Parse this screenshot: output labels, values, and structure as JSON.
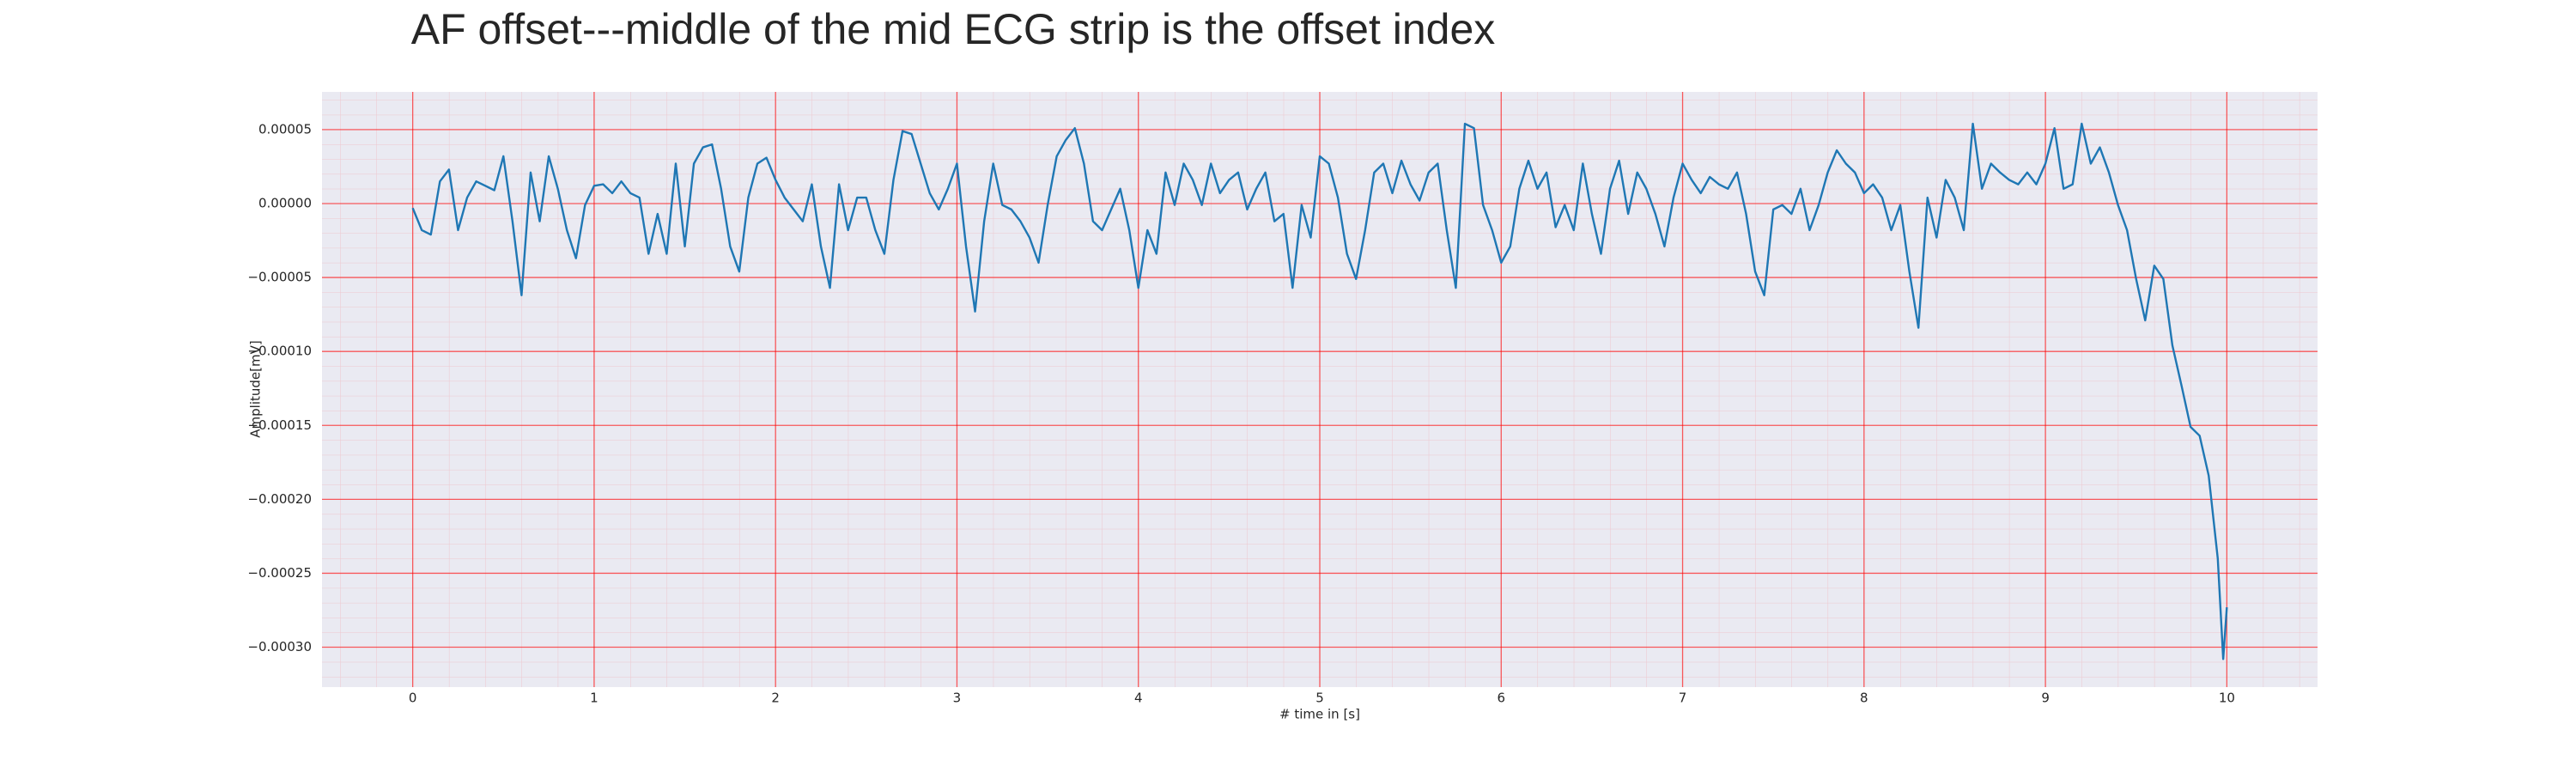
{
  "chart_data": {
    "type": "line",
    "title": "AF offset---middle of the mid ECG strip is the offset index",
    "x_label": "# time in [s]",
    "y_label": "Amplitude[mV]",
    "color": "#1f77b4",
    "grid": true,
    "xlim": [
      -0.5,
      10.5
    ],
    "ylim": [
      -0.000327,
      7.55e-05
    ],
    "xticks": [
      0,
      1,
      2,
      3,
      4,
      5,
      6,
      7,
      8,
      9,
      10
    ],
    "yticks": [
      {
        "value": 5e-05,
        "label": "0.00005"
      },
      {
        "value": 0,
        "label": "0.00000"
      },
      {
        "value": -5e-05,
        "label": "−0.00005"
      },
      {
        "value": -0.0001,
        "label": "−0.00010"
      },
      {
        "value": -0.00015,
        "label": "−0.00015"
      },
      {
        "value": -0.0002,
        "label": "−0.00020"
      },
      {
        "value": -0.00025,
        "label": "−0.00025"
      },
      {
        "value": -0.0003,
        "label": "−0.00030"
      }
    ],
    "x": [
      0,
      0.05,
      0.1,
      0.15,
      0.2,
      0.25,
      0.3,
      0.35,
      0.4,
      0.45,
      0.5,
      0.55,
      0.6,
      0.65,
      0.7,
      0.75,
      0.8,
      0.85,
      0.9,
      0.95,
      1,
      1.05,
      1.1,
      1.15,
      1.2,
      1.25,
      1.3,
      1.35,
      1.4,
      1.45,
      1.5,
      1.55,
      1.6,
      1.65,
      1.7,
      1.75,
      1.8,
      1.85,
      1.9,
      1.95,
      2,
      2.05,
      2.1,
      2.15,
      2.2,
      2.25,
      2.3,
      2.35,
      2.4,
      2.45,
      2.5,
      2.55,
      2.6,
      2.65,
      2.7,
      2.75,
      2.8,
      2.85,
      2.9,
      2.95,
      3,
      3.05,
      3.1,
      3.15,
      3.2,
      3.25,
      3.3,
      3.35,
      3.4,
      3.45,
      3.5,
      3.55,
      3.6,
      3.65,
      3.7,
      3.75,
      3.8,
      3.85,
      3.9,
      3.95,
      4,
      4.05,
      4.1,
      4.15,
      4.2,
      4.25,
      4.3,
      4.35,
      4.4,
      4.45,
      4.5,
      4.55,
      4.6,
      4.65,
      4.7,
      4.75,
      4.8,
      4.85,
      4.9,
      4.95,
      5,
      5.05,
      5.1,
      5.15,
      5.2,
      5.25,
      5.3,
      5.35,
      5.4,
      5.45,
      5.5,
      5.55,
      5.6,
      5.65,
      5.7,
      5.75,
      5.8,
      5.85,
      5.9,
      5.95,
      6,
      6.05,
      6.1,
      6.15,
      6.2,
      6.25,
      6.3,
      6.35,
      6.4,
      6.45,
      6.5,
      6.55,
      6.6,
      6.65,
      6.7,
      6.75,
      6.8,
      6.85,
      6.9,
      6.95,
      7,
      7.05,
      7.1,
      7.15,
      7.2,
      7.25,
      7.3,
      7.35,
      7.4,
      7.45,
      7.5,
      7.55,
      7.6,
      7.65,
      7.7,
      7.75,
      7.8,
      7.85,
      7.9,
      7.95,
      8,
      8.05,
      8.1,
      8.15,
      8.2,
      8.25,
      8.3,
      8.35,
      8.4,
      8.45,
      8.5,
      8.55,
      8.6,
      8.65,
      8.7,
      8.75,
      8.8,
      8.85,
      8.9,
      8.95,
      9,
      9.05,
      9.1,
      9.15,
      9.2,
      9.25,
      9.3,
      9.35,
      9.4,
      9.45,
      9.5,
      9.55,
      9.6,
      9.65,
      9.7,
      9.75,
      9.8,
      9.85,
      9.9,
      9.95,
      9.98,
      10
    ],
    "values": [
      -3e-06,
      -1.8e-05,
      -2.1e-05,
      1.5e-05,
      2.3e-05,
      -1.8e-05,
      4e-06,
      1.5e-05,
      1.2e-05,
      9e-06,
      3.2e-05,
      -1.2e-05,
      -6.2e-05,
      2.1e-05,
      -1.2e-05,
      3.2e-05,
      1e-05,
      -1.8e-05,
      -3.7e-05,
      -1e-06,
      1.2e-05,
      1.3e-05,
      7e-06,
      1.5e-05,
      7e-06,
      4e-06,
      -3.4e-05,
      -7e-06,
      -3.4e-05,
      2.7e-05,
      -2.9e-05,
      2.7e-05,
      3.8e-05,
      4e-05,
      1e-05,
      -2.9e-05,
      -4.6e-05,
      4e-06,
      2.7e-05,
      3.1e-05,
      1.6e-05,
      4e-06,
      -4e-06,
      -1.2e-05,
      1.3e-05,
      -2.9e-05,
      -5.7e-05,
      1.3e-05,
      -1.8e-05,
      4e-06,
      4e-06,
      -1.8e-05,
      -3.4e-05,
      1.6e-05,
      4.9e-05,
      4.7e-05,
      2.7e-05,
      7e-06,
      -4e-06,
      1e-05,
      2.7e-05,
      -2.9e-05,
      -7.3e-05,
      -1.2e-05,
      2.7e-05,
      -1e-06,
      -4e-06,
      -1.2e-05,
      -2.3e-05,
      -4e-05,
      -1e-06,
      3.2e-05,
      4.3e-05,
      5.1e-05,
      2.7e-05,
      -1.2e-05,
      -1.8e-05,
      -4e-06,
      1e-05,
      -1.8e-05,
      -5.7e-05,
      -1.8e-05,
      -3.4e-05,
      2.1e-05,
      -1e-06,
      2.7e-05,
      1.6e-05,
      -1e-06,
      2.7e-05,
      7e-06,
      1.6e-05,
      2.1e-05,
      -4e-06,
      1e-05,
      2.1e-05,
      -1.2e-05,
      -7e-06,
      -5.7e-05,
      -1e-06,
      -2.3e-05,
      3.2e-05,
      2.7e-05,
      4e-06,
      -3.4e-05,
      -5.1e-05,
      -1.8e-05,
      2.1e-05,
      2.7e-05,
      7e-06,
      2.9e-05,
      1.3e-05,
      2e-06,
      2.1e-05,
      2.7e-05,
      -1.8e-05,
      -5.7e-05,
      5.4e-05,
      5.1e-05,
      -1e-06,
      -1.8e-05,
      -4e-05,
      -2.9e-05,
      1e-05,
      2.9e-05,
      1e-05,
      2.1e-05,
      -1.6e-05,
      -1e-06,
      -1.8e-05,
      2.7e-05,
      -7e-06,
      -3.4e-05,
      1e-05,
      2.9e-05,
      -7e-06,
      2.1e-05,
      1e-05,
      -7e-06,
      -2.9e-05,
      4e-06,
      2.7e-05,
      1.6e-05,
      7e-06,
      1.8e-05,
      1.3e-05,
      1e-05,
      2.1e-05,
      -7e-06,
      -4.6e-05,
      -6.2e-05,
      -4e-06,
      -1e-06,
      -7e-06,
      1e-05,
      -1.8e-05,
      -1e-06,
      2.1e-05,
      3.6e-05,
      2.7e-05,
      2.1e-05,
      7e-06,
      1.3e-05,
      4e-06,
      -1.8e-05,
      -1e-06,
      -4.6e-05,
      -8.4e-05,
      4e-06,
      -2.3e-05,
      1.6e-05,
      4e-06,
      -1.8e-05,
      5.4e-05,
      1e-05,
      2.7e-05,
      2.1e-05,
      1.6e-05,
      1.3e-05,
      2.1e-05,
      1.3e-05,
      2.7e-05,
      5.1e-05,
      1e-05,
      1.3e-05,
      5.4e-05,
      2.7e-05,
      3.8e-05,
      2.1e-05,
      -1e-06,
      -1.8e-05,
      -5.1e-05,
      -7.9e-05,
      -4.2e-05,
      -5.1e-05,
      -9.6e-05,
      -0.000123,
      -0.000151,
      -0.000157,
      -0.000184,
      -0.00024,
      -0.000308,
      -0.000273
    ]
  }
}
